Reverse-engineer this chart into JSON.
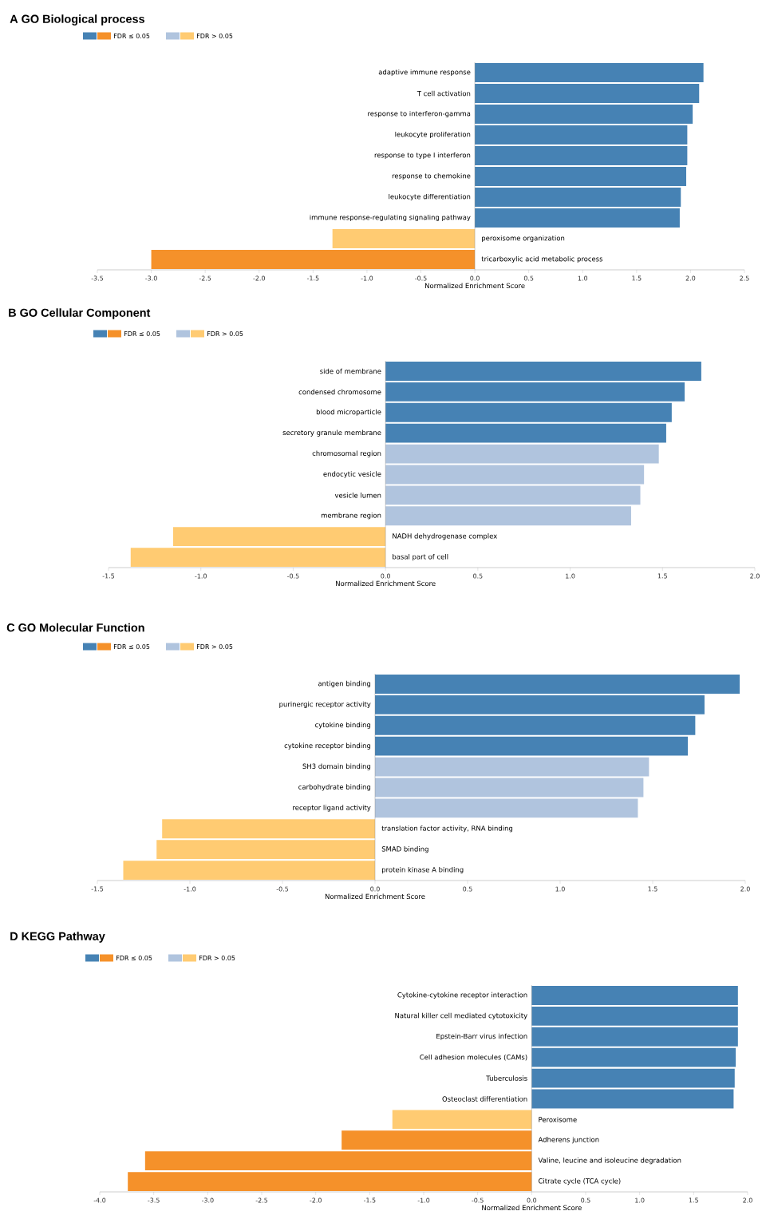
{
  "chart_data": [
    {
      "type": "bar",
      "orientation": "horizontal",
      "title": "A GO Biological process",
      "xlabel": "Normalized Enrichment Score",
      "legend": "top left",
      "categories": [
        "adaptive immune response",
        "T cell activation",
        "response to interferon-gamma",
        "leukocyte proliferation",
        "response to type I interferon",
        "response to chemokine",
        "leukocyte differentiation",
        "immune response-regulating signaling pathway",
        "peroxisome organization",
        "tricarboxylic acid metabolic process"
      ],
      "series": [
        {
          "color": "#4682b4",
          "values": [
            2.12,
            2.08,
            2.02,
            1.97,
            1.97,
            1.96,
            1.91,
            1.9,
            null,
            null
          ]
        },
        {
          "name": "FDR ≤ 0.05",
          "color": "#f5912a",
          "values": [
            null,
            null,
            null,
            null,
            null,
            null,
            null,
            null,
            null,
            -3.0
          ]
        },
        {
          "color": "#b0c4de",
          "values": [
            null,
            null,
            null,
            null,
            null,
            null,
            null,
            null,
            null,
            null
          ]
        },
        {
          "name": "FDR > 0.05",
          "color": "#ffcb72",
          "values": [
            null,
            null,
            null,
            null,
            null,
            null,
            null,
            null,
            -1.32,
            null
          ]
        }
      ],
      "xlim": [
        -3.5,
        2.5
      ],
      "xticks": [
        -3.5,
        {
          "value": -3,
          "label": "-3.0"
        },
        -2.5,
        {
          "value": -2,
          "label": "-2.0"
        },
        -1.5,
        {
          "value": -1,
          "label": "-1.0"
        },
        -0.5,
        {
          "value": 0,
          "label": "0.0"
        },
        0.5,
        {
          "value": 1,
          "label": "1.0"
        },
        1.5,
        {
          "value": 2,
          "label": "2.0"
        },
        2.5
      ]
    },
    {
      "type": "bar",
      "orientation": "horizontal",
      "title": "B GO Cellular Component",
      "xlabel": "Normalized Enrichment Score",
      "legend": "top left",
      "categories": [
        "side of membrane",
        "condensed chromosome",
        "blood microparticle",
        "secretory granule membrane",
        "chromosomal region",
        "endocytic vesicle",
        "vesicle lumen",
        "membrane region",
        "NADH dehydrogenase complex",
        "basal part of cell"
      ],
      "series": [
        {
          "color": "#4682b4",
          "values": [
            1.71,
            1.62,
            1.55,
            1.52,
            null,
            null,
            null,
            null,
            null,
            null
          ]
        },
        {
          "name": "FDR ≤ 0.05",
          "color": "#f5912a",
          "values": [
            null,
            null,
            null,
            null,
            null,
            null,
            null,
            null,
            null,
            null
          ]
        },
        {
          "color": "#b0c4de",
          "values": [
            null,
            null,
            null,
            null,
            1.48,
            1.4,
            1.38,
            1.33,
            null,
            null
          ]
        },
        {
          "name": "FDR > 0.05",
          "color": "#ffcb72",
          "values": [
            null,
            null,
            null,
            null,
            null,
            null,
            null,
            null,
            -1.15,
            -1.38
          ]
        }
      ],
      "xlim": [
        -1.5,
        2.0
      ],
      "xticks": [
        -1.5,
        {
          "value": -1,
          "label": "-1.0"
        },
        -0.5,
        {
          "value": 0,
          "label": "0.0"
        },
        0.5,
        {
          "value": 1,
          "label": "1.0"
        },
        1.5,
        {
          "value": 2,
          "label": "2.0"
        }
      ]
    },
    {
      "type": "bar",
      "orientation": "horizontal",
      "title": "C GO Molecular Function",
      "xlabel": "Normalized Enrichment Score",
      "legend": "top left",
      "categories": [
        "antigen binding",
        "purinergic receptor activity",
        "cytokine binding",
        "cytokine receptor binding",
        "SH3 domain binding",
        "carbohydrate binding",
        "receptor ligand activity",
        "translation factor activity, RNA binding",
        "SMAD binding",
        "protein kinase A binding"
      ],
      "series": [
        {
          "color": "#4682b4",
          "values": [
            1.97,
            1.78,
            1.73,
            1.69,
            null,
            null,
            null,
            null,
            null,
            null
          ]
        },
        {
          "name": "FDR ≤ 0.05",
          "color": "#f5912a",
          "values": [
            null,
            null,
            null,
            null,
            null,
            null,
            null,
            null,
            null,
            null
          ]
        },
        {
          "color": "#b0c4de",
          "values": [
            null,
            null,
            null,
            null,
            1.48,
            1.45,
            1.42,
            null,
            null,
            null
          ]
        },
        {
          "name": "FDR > 0.05",
          "color": "#ffcb72",
          "values": [
            null,
            null,
            null,
            null,
            null,
            null,
            null,
            -1.15,
            -1.18,
            -1.36
          ]
        }
      ],
      "xlim": [
        -1.5,
        2.0
      ],
      "xticks": [
        -1.5,
        {
          "value": -1,
          "label": "-1.0"
        },
        -0.5,
        {
          "value": 0,
          "label": "0.0"
        },
        0.5,
        {
          "value": 1,
          "label": "1.0"
        },
        1.5,
        {
          "value": 2,
          "label": "2.0"
        }
      ]
    },
    {
      "type": "bar",
      "orientation": "horizontal",
      "title": "D KEGG Pathway",
      "xlabel": "Normalized Enrichment Score",
      "legend": "top left",
      "categories": [
        "Cytokine-cytokine receptor interaction",
        "Natural killer cell mediated cytotoxicity",
        "Epstein-Barr virus infection",
        "Cell adhesion molecules (CAMs)",
        "Tuberculosis",
        "Osteoclast differentiation",
        "Peroxisome",
        "Adherens junction",
        "Valine, leucine and isoleucine degradation",
        "Citrate cycle (TCA cycle)"
      ],
      "series": [
        {
          "color": "#4682b4",
          "values": [
            1.91,
            1.91,
            1.91,
            1.89,
            1.88,
            1.87,
            null,
            null,
            null,
            null
          ]
        },
        {
          "name": "FDR ≤ 0.05",
          "color": "#f5912a",
          "values": [
            null,
            null,
            null,
            null,
            null,
            null,
            null,
            -1.76,
            -3.58,
            -3.74
          ]
        },
        {
          "color": "#b0c4de",
          "values": [
            null,
            null,
            null,
            null,
            null,
            null,
            null,
            null,
            null,
            null
          ]
        },
        {
          "name": "FDR > 0.05",
          "color": "#ffcb72",
          "values": [
            null,
            null,
            null,
            null,
            null,
            null,
            -1.29,
            null,
            null,
            null
          ]
        }
      ],
      "xlim": [
        -4.0,
        2.0
      ],
      "xticks": [
        {
          "value": -4,
          "label": "-4.0"
        },
        -3.5,
        {
          "value": -3,
          "label": "-3.0"
        },
        -2.5,
        {
          "value": -2,
          "label": "-2.0"
        },
        -1.5,
        {
          "value": -1,
          "label": "-1.0"
        },
        -0.5,
        {
          "value": 0,
          "label": "0.0"
        },
        0.5,
        {
          "value": 1,
          "label": "1.0"
        },
        1.5,
        {
          "value": 2,
          "label": "2.0"
        }
      ]
    }
  ]
}
